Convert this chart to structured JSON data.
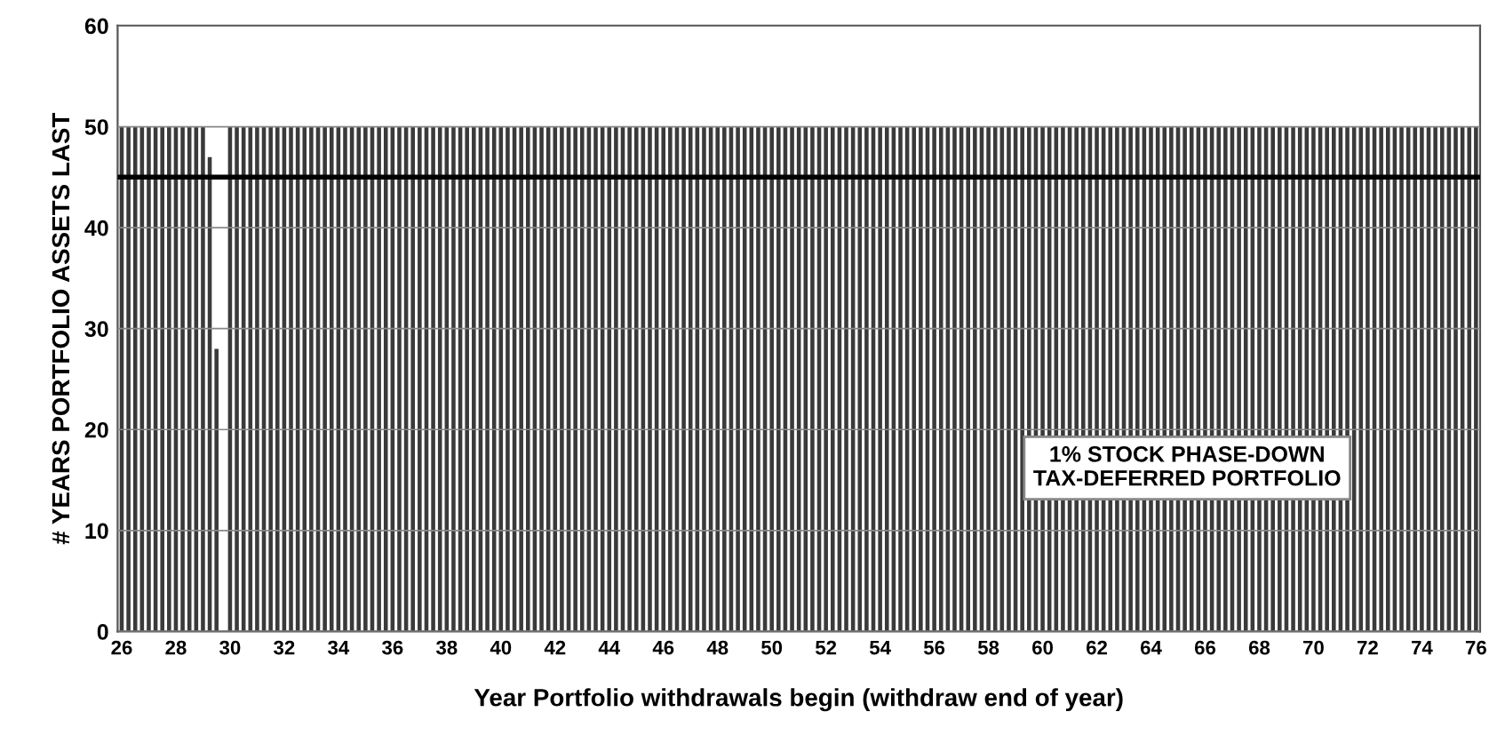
{
  "chart_data": {
    "type": "bar",
    "xlabel": "Year Portfolio withdrawals begin (withdraw end of year)",
    "ylabel": "# YEARS PORTFOLIO ASSETS LAST",
    "x": [
      26,
      26.25,
      26.5,
      26.75,
      27,
      27.25,
      27.5,
      27.75,
      28,
      28.25,
      28.5,
      28.75,
      29,
      29.25,
      29.5,
      29.75,
      30,
      30.25,
      30.5,
      30.75,
      31,
      31.25,
      31.5,
      31.75,
      32,
      32.25,
      32.5,
      32.75,
      33,
      33.25,
      33.5,
      33.75,
      34,
      34.25,
      34.5,
      34.75,
      35,
      35.25,
      35.5,
      35.75,
      36,
      36.25,
      36.5,
      36.75,
      37,
      37.25,
      37.5,
      37.75,
      38,
      38.25,
      38.5,
      38.75,
      39,
      39.25,
      39.5,
      39.75,
      40,
      40.25,
      40.5,
      40.75,
      41,
      41.25,
      41.5,
      41.75,
      42,
      42.25,
      42.5,
      42.75,
      43,
      43.25,
      43.5,
      43.75,
      44,
      44.25,
      44.5,
      44.75,
      45,
      45.25,
      45.5,
      45.75,
      46,
      46.25,
      46.5,
      46.75,
      47,
      47.25,
      47.5,
      47.75,
      48,
      48.25,
      48.5,
      48.75,
      49,
      49.25,
      49.5,
      49.75,
      50,
      50.25,
      50.5,
      50.75,
      51,
      51.25,
      51.5,
      51.75,
      52,
      52.25,
      52.5,
      52.75,
      53,
      53.25,
      53.5,
      53.75,
      54,
      54.25,
      54.5,
      54.75,
      55,
      55.25,
      55.5,
      55.75,
      56,
      56.25,
      56.5,
      56.75,
      57,
      57.25,
      57.5,
      57.75,
      58,
      58.25,
      58.5,
      58.75,
      59,
      59.25,
      59.5,
      59.75,
      60,
      60.25,
      60.5,
      60.75,
      61,
      61.25,
      61.5,
      61.75,
      62,
      62.25,
      62.5,
      62.75,
      63,
      63.25,
      63.5,
      63.75,
      64,
      64.25,
      64.5,
      64.75,
      65,
      65.25,
      65.5,
      65.75,
      66,
      66.25,
      66.5,
      66.75,
      67,
      67.25,
      67.5,
      67.75,
      68,
      68.25,
      68.5,
      68.75,
      69,
      69.25,
      69.5,
      69.75,
      70,
      70.25,
      70.5,
      70.75,
      71,
      71.25,
      71.5,
      71.75,
      72,
      72.25,
      72.5,
      72.75,
      73,
      73.25,
      73.5,
      73.75,
      74,
      74.25,
      74.5,
      74.75,
      75,
      75.25,
      75.5,
      75.75,
      76
    ],
    "values": [
      50,
      50,
      50,
      50,
      50,
      50,
      50,
      50,
      50,
      50,
      50,
      50,
      50,
      47,
      28,
      null,
      50,
      50,
      50,
      50,
      50,
      50,
      50,
      50,
      50,
      50,
      50,
      50,
      50,
      50,
      50,
      50,
      50,
      50,
      50,
      50,
      50,
      50,
      50,
      50,
      50,
      50,
      50,
      50,
      50,
      50,
      50,
      50,
      50,
      50,
      50,
      50,
      50,
      50,
      50,
      50,
      50,
      50,
      50,
      50,
      50,
      50,
      50,
      50,
      50,
      50,
      50,
      50,
      50,
      50,
      50,
      50,
      50,
      50,
      50,
      50,
      50,
      50,
      50,
      50,
      50,
      50,
      50,
      50,
      50,
      50,
      50,
      50,
      50,
      50,
      50,
      50,
      50,
      50,
      50,
      50,
      50,
      50,
      50,
      50,
      50,
      50,
      50,
      50,
      50,
      50,
      50,
      50,
      50,
      50,
      50,
      50,
      50,
      50,
      50,
      50,
      50,
      50,
      50,
      50,
      50,
      50,
      50,
      50,
      50,
      50,
      50,
      50,
      50,
      50,
      50,
      50,
      50,
      50,
      50,
      50,
      50,
      50,
      50,
      50,
      50,
      50,
      50,
      50,
      50,
      50,
      50,
      50,
      50,
      50,
      50,
      50,
      50,
      50,
      50,
      50,
      50,
      50,
      50,
      50,
      50,
      50,
      50,
      50,
      50,
      50,
      50,
      50,
      50,
      50,
      50,
      50,
      50,
      50,
      50,
      50,
      50,
      50,
      50,
      50,
      50,
      50,
      50,
      50,
      50,
      50,
      50,
      50,
      50,
      50,
      50,
      50,
      50,
      50,
      50,
      50,
      50,
      50,
      50,
      50,
      50
    ],
    "color": "#3a3a3a",
    "xlim": [
      25.85,
      76.15
    ],
    "xticks": [
      26,
      28,
      30,
      32,
      34,
      36,
      38,
      40,
      42,
      44,
      46,
      48,
      50,
      52,
      54,
      56,
      58,
      60,
      62,
      64,
      66,
      68,
      70,
      72,
      74,
      76
    ],
    "ylim": [
      0,
      60
    ],
    "yticks": [
      0,
      10,
      20,
      30,
      40,
      50,
      60
    ],
    "grid": "y",
    "ref_lines": [
      {
        "axis": "y",
        "value": 45,
        "color": "#000000",
        "line_style": "solid"
      }
    ],
    "annotations": [
      "1% STOCK PHASE-DOWN\nTAX-DEFERRED PORTFOLIO"
    ]
  }
}
